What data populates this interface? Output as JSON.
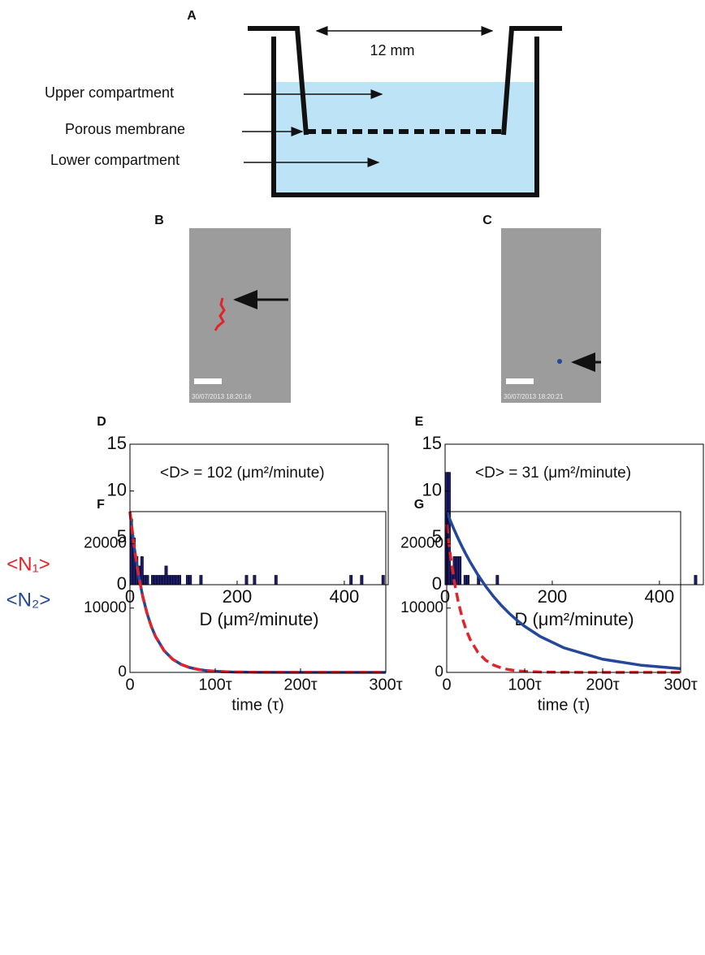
{
  "diagram": {
    "label": "A",
    "width_label": "12 mm",
    "labels": [
      "Upper compartment",
      "Porous membrane",
      "Lower compartment"
    ]
  },
  "images": [
    {
      "label": "B",
      "timestamp": "30/07/2013 18:20:16"
    },
    {
      "label": "C",
      "timestamp": "30/07/2013 18:20:21"
    }
  ],
  "chart_data": [
    {
      "type": "histogram",
      "panel": "D",
      "annotation": "<D> = 102 (μm²/minute)",
      "x_label": "D (μm²/minute)",
      "color": "#1c1c6b",
      "bins": [
        0,
        5,
        10,
        15,
        20,
        25,
        30,
        35,
        40,
        45,
        50,
        55,
        60,
        65,
        70,
        75,
        80,
        85,
        90,
        95,
        100,
        105,
        110,
        115,
        120,
        125,
        130,
        135,
        140,
        145,
        150,
        155,
        160,
        165,
        170,
        175,
        180,
        185,
        190,
        195,
        200,
        205,
        210,
        215,
        220,
        225,
        230,
        235,
        240,
        245,
        250,
        255,
        260,
        265,
        270,
        275,
        280,
        285,
        290,
        295,
        300,
        305,
        310,
        315,
        320,
        325,
        330,
        335,
        340,
        345,
        350,
        355,
        360,
        365,
        370,
        375,
        380,
        385,
        390,
        395,
        400,
        405,
        410,
        415,
        420,
        425,
        430,
        435,
        440,
        445,
        450,
        455,
        460,
        465,
        470,
        475,
        480,
        485
      ],
      "counts": [
        7,
        5,
        3,
        2,
        3,
        1,
        1,
        0,
        1,
        1,
        1,
        1,
        1,
        2,
        1,
        1,
        1,
        1,
        1,
        0,
        0,
        1,
        1,
        0,
        0,
        0,
        1,
        0,
        0,
        0,
        0,
        0,
        0,
        0,
        0,
        0,
        0,
        0,
        0,
        0,
        0,
        0,
        0,
        1,
        0,
        0,
        1,
        0,
        0,
        0,
        0,
        0,
        0,
        0,
        1,
        0,
        0,
        0,
        0,
        0,
        0,
        0,
        0,
        0,
        0,
        0,
        0,
        0,
        0,
        0,
        0,
        0,
        0,
        0,
        0,
        0,
        0,
        0,
        0,
        0,
        0,
        0,
        1,
        0,
        0,
        0,
        1,
        0,
        0,
        0,
        0,
        0,
        0,
        0,
        1,
        0,
        0
      ],
      "xlim": [
        0,
        482
      ],
      "xticks": [
        0,
        200,
        400
      ],
      "ylim": [
        0,
        15
      ],
      "yticks": [
        0,
        5,
        10,
        15
      ]
    },
    {
      "type": "histogram",
      "panel": "E",
      "annotation": "<D> = 31 (μm²/minute)",
      "x_label": "D (μm²/minute)",
      "color": "#1c1c6b",
      "bins": [
        0,
        5,
        10,
        15,
        20,
        25,
        30,
        35,
        40,
        45,
        50,
        55,
        60,
        65,
        70,
        75,
        80,
        85,
        90,
        95,
        100,
        105,
        110,
        115,
        120,
        125,
        130,
        135,
        140,
        145,
        150,
        155,
        160,
        165,
        170,
        175,
        180,
        185,
        190,
        195,
        200,
        205,
        210,
        215,
        220,
        225,
        230,
        235,
        240,
        245,
        250,
        255,
        260,
        265,
        270,
        275,
        280,
        285,
        290,
        295,
        300,
        305,
        310,
        315,
        320,
        325,
        330,
        335,
        340,
        345,
        350,
        355,
        360,
        365,
        370,
        375,
        380,
        385,
        390,
        395,
        400,
        405,
        410,
        415,
        420,
        425,
        430,
        435,
        440,
        445,
        450,
        455,
        460,
        465,
        470,
        475,
        480,
        485
      ],
      "counts": [
        12,
        12,
        2,
        3,
        3,
        3,
        0,
        1,
        1,
        0,
        0,
        0,
        1,
        0,
        0,
        0,
        0,
        0,
        0,
        1,
        0,
        0,
        0,
        0,
        0,
        0,
        0,
        0,
        0,
        0,
        0,
        0,
        0,
        0,
        0,
        0,
        0,
        0,
        0,
        0,
        0,
        0,
        0,
        0,
        0,
        0,
        0,
        0,
        0,
        0,
        0,
        0,
        0,
        0,
        0,
        0,
        0,
        0,
        0,
        0,
        0,
        0,
        0,
        0,
        0,
        0,
        0,
        0,
        0,
        0,
        0,
        0,
        0,
        0,
        0,
        0,
        0,
        0,
        0,
        0,
        0,
        0,
        0,
        0,
        0,
        0,
        0,
        0,
        0,
        0,
        0,
        0,
        0,
        1,
        0,
        0,
        0
      ],
      "xlim": [
        0,
        482
      ],
      "xticks": [
        0,
        200,
        400
      ],
      "ylim": [
        0,
        15
      ],
      "yticks": [
        0,
        5,
        10,
        15
      ]
    },
    {
      "type": "line",
      "panel": "F",
      "x_label": "time (τ)",
      "x": [
        0,
        5,
        10,
        15,
        20,
        25,
        30,
        40,
        50,
        60,
        70,
        80,
        90,
        100,
        120,
        150,
        200,
        250,
        300
      ],
      "series": [
        {
          "name": "<N₂>",
          "color": "#24479a",
          "dash": false,
          "values": [
            25000,
            19470,
            15163,
            11809,
            9197,
            7163,
            5578,
            3383,
            2052,
            1245,
            755,
            458,
            278,
            168,
            62,
            14,
            1,
            0,
            0
          ]
        },
        {
          "name": "<N₁>",
          "color": "#e0242b",
          "dash": true,
          "values": [
            25000,
            19470,
            15163,
            11809,
            9197,
            7163,
            5578,
            3383,
            2052,
            1245,
            755,
            458,
            278,
            168,
            62,
            14,
            1,
            0,
            0
          ]
        }
      ],
      "xlim": [
        0,
        300
      ],
      "xticks": [
        {
          "value": 0,
          "label": "0"
        },
        {
          "value": 100,
          "label": "100τ"
        },
        {
          "value": 200,
          "label": "200τ"
        },
        {
          "value": 300,
          "label": "300τ"
        }
      ],
      "ylim": [
        0,
        25000
      ],
      "yticks": [
        0,
        10000,
        20000
      ]
    },
    {
      "type": "line",
      "panel": "G",
      "x_label": "time (τ)",
      "x": [
        0,
        5,
        10,
        15,
        20,
        25,
        30,
        40,
        50,
        60,
        70,
        80,
        90,
        100,
        120,
        150,
        200,
        250,
        300
      ],
      "series": [
        {
          "color": "#24479a",
          "dash": false,
          "values": [
            25000,
            23486,
            22062,
            20725,
            19470,
            18290,
            17182,
            15163,
            13382,
            11809,
            10422,
            9197,
            8116,
            7163,
            5578,
            3834,
            2052,
            1098,
            588
          ]
        },
        {
          "color": "#e0242b",
          "dash": true,
          "values": [
            23000,
            17912,
            13950,
            10864,
            8461,
            6590,
            5132,
            3113,
            1888,
            1145,
            695,
            421,
            256,
            155,
            57,
            13,
            1,
            0,
            0
          ]
        }
      ],
      "xlim": [
        0,
        300
      ],
      "xticks": [
        {
          "value": 0,
          "label": "0"
        },
        {
          "value": 100,
          "label": "100τ"
        },
        {
          "value": 200,
          "label": "200τ"
        },
        {
          "value": 300,
          "label": "300τ"
        }
      ],
      "ylim": [
        0,
        25000
      ],
      "yticks": [
        0,
        10000,
        20000
      ]
    }
  ]
}
